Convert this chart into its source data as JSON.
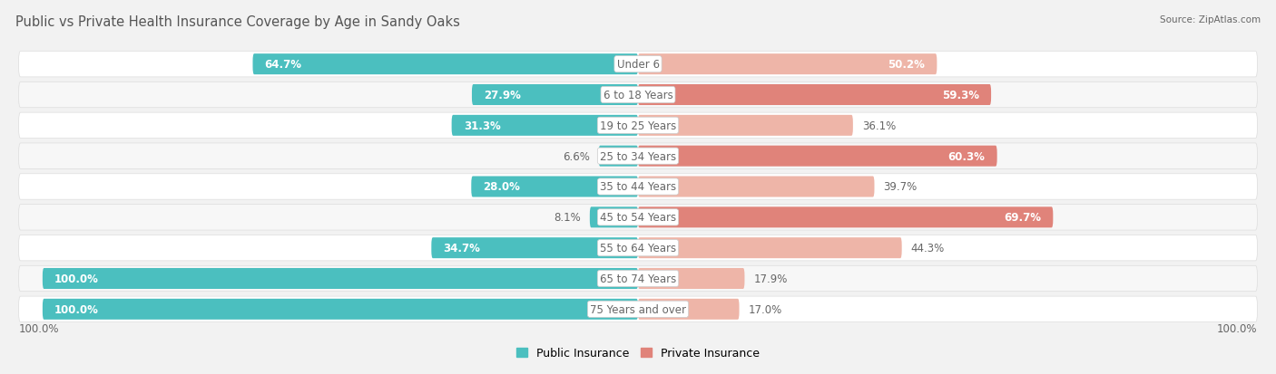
{
  "title": "Public vs Private Health Insurance Coverage by Age in Sandy Oaks",
  "source": "Source: ZipAtlas.com",
  "categories": [
    "Under 6",
    "6 to 18 Years",
    "19 to 25 Years",
    "25 to 34 Years",
    "35 to 44 Years",
    "45 to 54 Years",
    "55 to 64 Years",
    "65 to 74 Years",
    "75 Years and over"
  ],
  "public_values": [
    64.7,
    27.9,
    31.3,
    6.6,
    28.0,
    8.1,
    34.7,
    100.0,
    100.0
  ],
  "private_values": [
    50.2,
    59.3,
    36.1,
    60.3,
    39.7,
    69.7,
    44.3,
    17.9,
    17.0
  ],
  "public_color": "#4BBFBF",
  "private_color": "#E0837A",
  "private_color_light": "#EEB5A8",
  "bg_color": "#f2f2f2",
  "row_color": "#ffffff",
  "row_alt_color": "#f7f7f7",
  "text_color": "#666666",
  "white_text": "#ffffff",
  "label_fontsize": 8.5,
  "title_fontsize": 10.5,
  "source_fontsize": 7.5,
  "figsize": [
    14.06,
    4.14
  ],
  "dpi": 100,
  "xlim": 105,
  "bar_height": 0.68,
  "row_rounding": 0.3
}
